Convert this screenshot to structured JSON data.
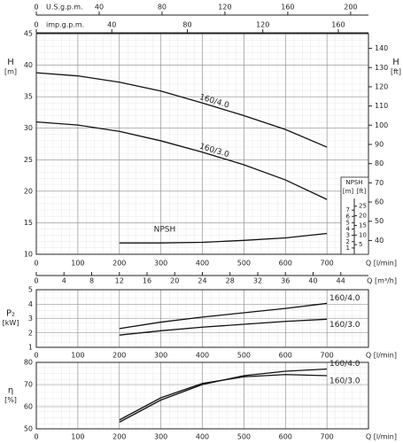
{
  "chart_data": [
    {
      "type": "line",
      "x_label": "Q [l/min]",
      "y_label": "H",
      "y_unit": "[m]",
      "y2_label": "H",
      "y2_unit": "[ft]",
      "x": [
        0,
        100,
        200,
        300,
        400,
        500,
        600,
        700
      ],
      "xlim": [
        0,
        800
      ],
      "xticks": [
        0,
        100,
        200,
        300,
        400,
        500,
        600,
        700
      ],
      "ylim": [
        10,
        45
      ],
      "yticks": [
        10,
        15,
        20,
        25,
        30,
        35,
        40,
        45
      ],
      "y2lim": [
        32.81,
        147.64
      ],
      "y2ticks": [
        40,
        50,
        60,
        70,
        80,
        90,
        100,
        110,
        120,
        130,
        140
      ],
      "grid": true,
      "series": [
        {
          "name": "160/4.0",
          "color": "#111111",
          "values": [
            38.8,
            38.3,
            37.3,
            35.9,
            34.0,
            32.0,
            29.8,
            27.0
          ]
        },
        {
          "name": "160/3.0",
          "color": "#111111",
          "values": [
            31.0,
            30.5,
            29.5,
            28.0,
            26.2,
            24.2,
            21.8,
            18.7
          ]
        }
      ],
      "npsh": {
        "title": "NPSH",
        "name": "NPSH",
        "unit_m": "[m]",
        "unit_ft": "[ft]",
        "color": "#111111",
        "ylim": [
          0,
          8
        ],
        "yticks": [
          1,
          2,
          3,
          4,
          5,
          6,
          7
        ],
        "y2lim": [
          0,
          26.25
        ],
        "y2ticks": [
          5,
          10,
          15,
          20,
          25
        ],
        "x": [
          200,
          300,
          400,
          500,
          600,
          700
        ],
        "values": [
          1.8,
          1.8,
          1.9,
          2.2,
          2.6,
          3.3
        ]
      },
      "top_axes": [
        {
          "label": "U.S.g.p.m.",
          "lim": [
            0,
            211.34
          ],
          "ticks": [
            0,
            40,
            80,
            120,
            160,
            200
          ]
        },
        {
          "label": "imp.g.p.m.",
          "lim": [
            0,
            175.98
          ],
          "ticks": [
            0,
            40,
            80,
            120,
            160
          ]
        }
      ],
      "x2_label": "Q [m³/h]",
      "x2lim": [
        0,
        48
      ],
      "x2ticks": [
        0,
        4,
        8,
        12,
        16,
        20,
        24,
        28,
        32,
        36,
        40,
        44
      ]
    },
    {
      "type": "line",
      "x_label": "Q [l/min]",
      "y_label": "P₂",
      "y_unit": "[kW]",
      "x": [
        200,
        300,
        400,
        500,
        600,
        700
      ],
      "xlim": [
        0,
        800
      ],
      "xticks": [
        0,
        100,
        200,
        300,
        400,
        500,
        600,
        700
      ],
      "ylim": [
        1,
        5
      ],
      "yticks": [
        1,
        2,
        3,
        4,
        5
      ],
      "grid": true,
      "series": [
        {
          "name": "160/4.0",
          "color": "#111111",
          "values": [
            2.3,
            2.75,
            3.1,
            3.4,
            3.7,
            4.05
          ]
        },
        {
          "name": "160/3.0",
          "color": "#111111",
          "values": [
            1.85,
            2.15,
            2.4,
            2.6,
            2.8,
            2.95
          ]
        }
      ]
    },
    {
      "type": "line",
      "x_label": "Q [l/min]",
      "y_label": "η",
      "y_unit": "[%]",
      "x": [
        200,
        300,
        400,
        500,
        600,
        700
      ],
      "xlim": [
        0,
        800
      ],
      "xticks": [
        0,
        100,
        200,
        300,
        400,
        500,
        600,
        700
      ],
      "ylim": [
        50,
        80
      ],
      "yticks": [
        50,
        60,
        70,
        80
      ],
      "grid": true,
      "series": [
        {
          "name": "160/4.0",
          "color": "#111111",
          "values": [
            53,
            63,
            70,
            74,
            76,
            77
          ]
        },
        {
          "name": "160/3.0",
          "color": "#111111",
          "values": [
            54,
            64,
            70.5,
            73.5,
            74.5,
            74
          ]
        }
      ]
    }
  ]
}
